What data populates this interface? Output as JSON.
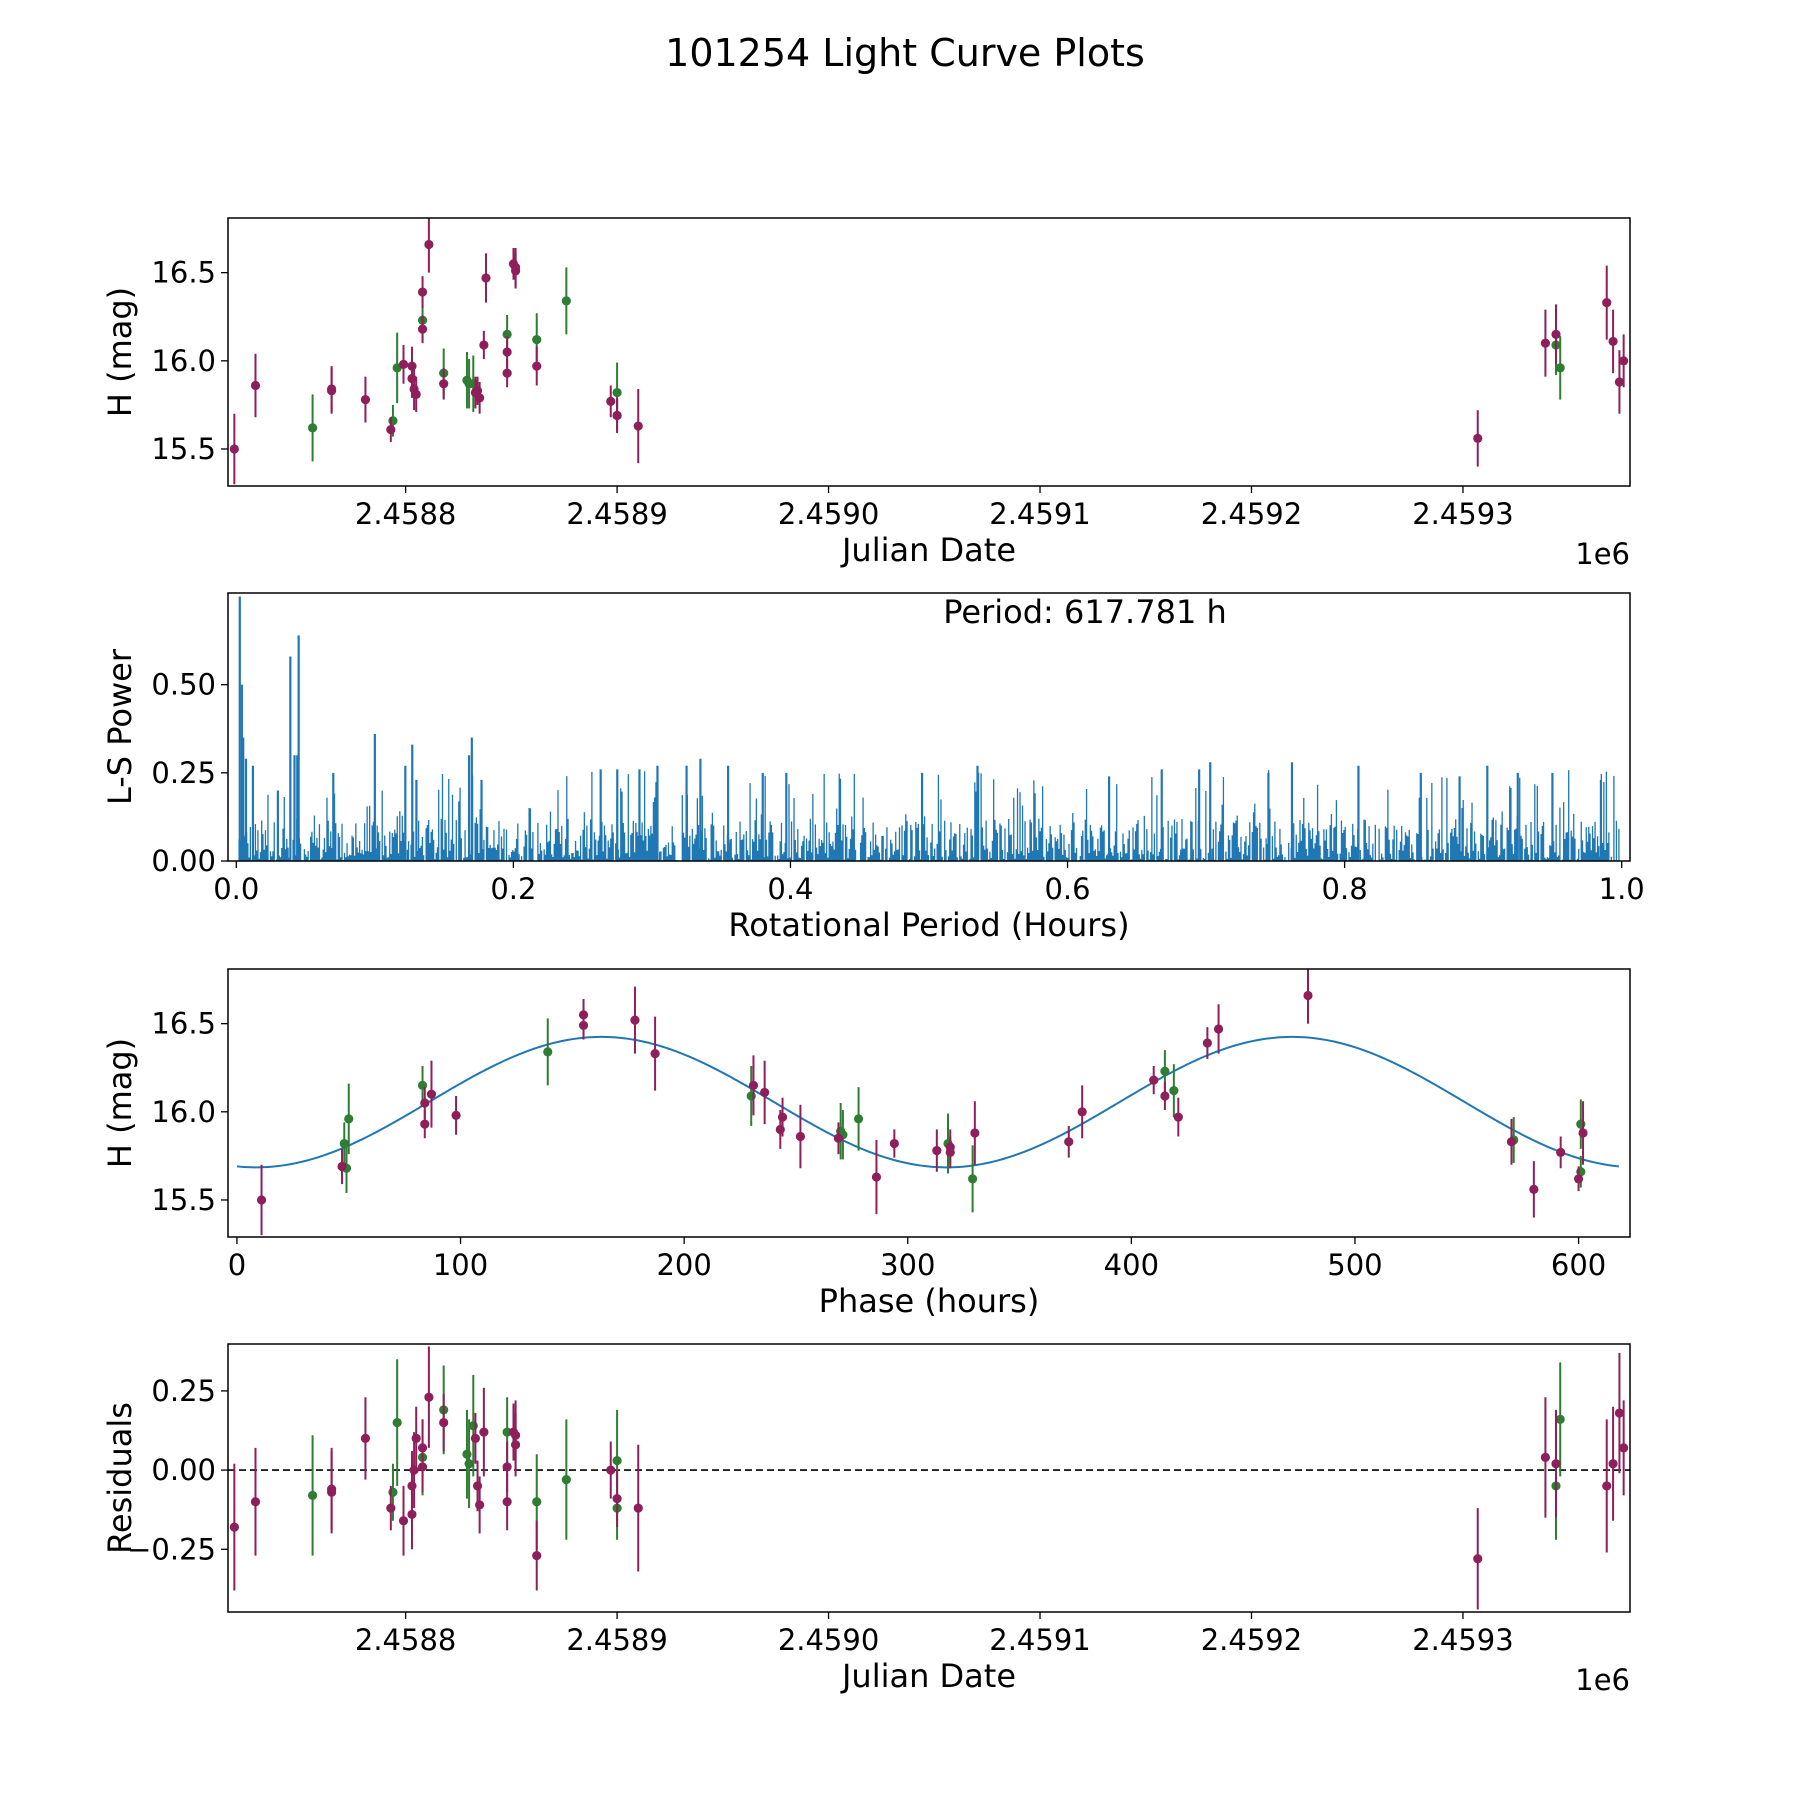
{
  "figure_title": "101254 Light Curve Plots",
  "colors": {
    "series_a": "#2e7d32",
    "series_b": "#8e1f5a",
    "model": "#1f77b4",
    "ls_power": "#1f77b4"
  },
  "chart_data": [
    {
      "id": "lightcurve",
      "type": "scatter",
      "xlabel": "Julian Date",
      "ylabel": "H (mag)",
      "x_offset_label": "1e6",
      "xlim": [
        2.458716,
        2.459379
      ],
      "ylim": [
        15.29,
        16.81
      ],
      "xticks": [
        2.4588,
        2.4589,
        2.459,
        2.4591,
        2.4592,
        2.4593
      ],
      "xtick_labels": [
        "2.4588",
        "2.4589",
        "2.4590",
        "2.4591",
        "2.4592",
        "2.4593"
      ],
      "yticks": [
        15.5,
        16.0,
        16.5
      ],
      "ytick_labels": [
        "15.5",
        "16.0",
        "16.5"
      ],
      "series": [
        {
          "name": "green",
          "color": "#2e7d32",
          "points": [
            [
              2.458756,
              15.62,
              0.19
            ],
            [
              2.458794,
              15.66,
              0.09
            ],
            [
              2.458796,
              15.96,
              0.2
            ],
            [
              2.458808,
              16.23,
              0.12
            ],
            [
              2.458818,
              15.93,
              0.14
            ],
            [
              2.458829,
              15.89,
              0.16
            ],
            [
              2.45883,
              15.87,
              0.14
            ],
            [
              2.458832,
              15.87,
              0.16
            ],
            [
              2.458848,
              16.15,
              0.11
            ],
            [
              2.458862,
              16.12,
              0.15
            ],
            [
              2.458876,
              16.34,
              0.19
            ],
            [
              2.4589,
              15.82,
              0.17
            ],
            [
              2.459344,
              16.09,
              0.17
            ],
            [
              2.459346,
              15.96,
              0.18
            ]
          ]
        },
        {
          "name": "maroon",
          "color": "#8e1f5a",
          "points": [
            [
              2.458719,
              15.5,
              0.2
            ],
            [
              2.458729,
              15.86,
              0.18
            ],
            [
              2.458765,
              15.84,
              0.13
            ],
            [
              2.458765,
              15.83,
              0.13
            ],
            [
              2.458781,
              15.78,
              0.13
            ],
            [
              2.458793,
              15.61,
              0.07
            ],
            [
              2.458799,
              15.98,
              0.11
            ],
            [
              2.458803,
              15.97,
              0.11
            ],
            [
              2.458803,
              15.9,
              0.11
            ],
            [
              2.458804,
              15.84,
              0.12
            ],
            [
              2.458805,
              15.81,
              0.1
            ],
            [
              2.458808,
              16.18,
              0.08
            ],
            [
              2.458808,
              16.39,
              0.09
            ],
            [
              2.458811,
              16.66,
              0.16
            ],
            [
              2.458818,
              15.87,
              0.09
            ],
            [
              2.458833,
              15.82,
              0.09
            ],
            [
              2.458834,
              15.83,
              0.08
            ],
            [
              2.458835,
              15.79,
              0.09
            ],
            [
              2.458837,
              16.09,
              0.08
            ],
            [
              2.458838,
              16.47,
              0.14
            ],
            [
              2.458848,
              15.93,
              0.08
            ],
            [
              2.458848,
              16.05,
              0.09
            ],
            [
              2.458851,
              16.55,
              0.09
            ],
            [
              2.458852,
              16.51,
              0.1
            ],
            [
              2.458852,
              16.53,
              0.11
            ],
            [
              2.458862,
              15.97,
              0.11
            ],
            [
              2.458897,
              15.77,
              0.09
            ],
            [
              2.4589,
              15.69,
              0.1
            ],
            [
              2.4589,
              15.69,
              0.09
            ],
            [
              2.45891,
              15.63,
              0.21
            ],
            [
              2.459307,
              15.56,
              0.16
            ],
            [
              2.459339,
              16.1,
              0.19
            ],
            [
              2.459344,
              16.15,
              0.17
            ],
            [
              2.459368,
              16.33,
              0.21
            ],
            [
              2.459371,
              16.11,
              0.18
            ],
            [
              2.459374,
              15.88,
              0.18
            ],
            [
              2.459376,
              16.0,
              0.15
            ]
          ]
        }
      ]
    },
    {
      "id": "periodogram",
      "type": "line",
      "xlabel": "Rotational Period (Hours)",
      "ylabel": "L-S Power",
      "annotation": "Period: 617.781 h",
      "xlim": [
        -0.006,
        1.006
      ],
      "ylim": [
        0,
        0.76
      ],
      "xticks": [
        0.0,
        0.2,
        0.4,
        0.6,
        0.8,
        1.0
      ],
      "xtick_labels": [
        "0.0",
        "0.2",
        "0.4",
        "0.6",
        "0.8",
        "1.0"
      ],
      "yticks": [
        0.0,
        0.25,
        0.5
      ],
      "ytick_labels": [
        "0.00",
        "0.25",
        "0.50"
      ],
      "x_range": [
        0.002,
        0.998
      ],
      "n_samples": 1100,
      "typical_max_power": 0.12,
      "typical_spike_power": 0.26,
      "peaks": [
        [
          0.0025,
          0.75
        ],
        [
          0.004,
          0.5
        ],
        [
          0.005,
          0.35
        ],
        [
          0.007,
          0.29
        ],
        [
          0.012,
          0.27
        ],
        [
          0.03,
          0.2
        ],
        [
          0.039,
          0.58
        ],
        [
          0.042,
          0.3
        ],
        [
          0.044,
          0.3
        ],
        [
          0.045,
          0.64
        ],
        [
          0.07,
          0.25
        ],
        [
          0.1,
          0.36
        ],
        [
          0.122,
          0.27
        ],
        [
          0.127,
          0.33
        ],
        [
          0.13,
          0.23
        ],
        [
          0.168,
          0.3
        ],
        [
          0.17,
          0.35
        ],
        [
          0.177,
          0.23
        ],
        [
          0.263,
          0.26
        ],
        [
          0.275,
          0.26
        ],
        [
          0.291,
          0.26
        ],
        [
          0.304,
          0.27
        ],
        [
          0.325,
          0.27
        ],
        [
          0.335,
          0.29
        ],
        [
          0.355,
          0.27
        ],
        [
          0.38,
          0.25
        ],
        [
          0.397,
          0.25
        ],
        [
          0.495,
          0.25
        ],
        [
          0.535,
          0.27
        ],
        [
          0.63,
          0.24
        ],
        [
          0.668,
          0.26
        ],
        [
          0.695,
          0.26
        ],
        [
          0.703,
          0.28
        ],
        [
          0.745,
          0.25
        ],
        [
          0.762,
          0.28
        ],
        [
          0.81,
          0.27
        ],
        [
          0.855,
          0.25
        ],
        [
          0.883,
          0.24
        ],
        [
          0.903,
          0.27
        ],
        [
          0.925,
          0.25
        ],
        [
          0.95,
          0.25
        ],
        [
          0.985,
          0.23
        ]
      ]
    },
    {
      "id": "folded",
      "type": "scatter",
      "xlabel": "Phase (hours)",
      "ylabel": "H (mag)",
      "xlim": [
        -4,
        623
      ],
      "ylim": [
        15.29,
        16.81
      ],
      "xticks": [
        0,
        100,
        200,
        300,
        400,
        500,
        600
      ],
      "xtick_labels": [
        "0",
        "100",
        "200",
        "300",
        "400",
        "500",
        "600"
      ],
      "yticks": [
        15.5,
        16.0,
        16.5
      ],
      "ytick_labels": [
        "15.5",
        "16.0",
        "16.5"
      ],
      "model": {
        "type": "sinusoid",
        "mean": 16.055,
        "amplitude": 0.37,
        "period_h": 308.9,
        "peak_phase_h": 163,
        "x_range": [
          0,
          618
        ]
      },
      "series": [
        {
          "name": "green",
          "color": "#2e7d32",
          "points": [
            [
              48,
              15.82,
              0.12
            ],
            [
              49,
              15.68,
              0.14
            ],
            [
              50,
              15.96,
              0.2
            ],
            [
              83,
              16.15,
              0.11
            ],
            [
              139,
              16.34,
              0.19
            ],
            [
              230,
              16.09,
              0.17
            ],
            [
              270,
              15.89,
              0.16
            ],
            [
              271,
              15.87,
              0.14
            ],
            [
              278,
              15.96,
              0.18
            ],
            [
              318,
              15.82,
              0.17
            ],
            [
              329,
              15.62,
              0.19
            ],
            [
              415,
              16.23,
              0.12
            ],
            [
              419,
              16.12,
              0.15
            ],
            [
              571,
              15.84,
              0.13
            ],
            [
              601,
              15.93,
              0.14
            ],
            [
              601,
              15.66,
              0.09
            ]
          ]
        },
        {
          "name": "maroon",
          "color": "#8e1f5a",
          "points": [
            [
              11,
              15.5,
              0.2
            ],
            [
              47,
              15.69,
              0.1
            ],
            [
              84,
              16.05,
              0.09
            ],
            [
              84,
              15.93,
              0.08
            ],
            [
              87,
              16.1,
              0.19
            ],
            [
              98,
              15.98,
              0.11
            ],
            [
              155,
              16.55,
              0.09
            ],
            [
              155,
              16.49,
              0.08
            ],
            [
              178,
              16.52,
              0.19
            ],
            [
              187,
              16.33,
              0.21
            ],
            [
              231,
              16.15,
              0.17
            ],
            [
              236,
              16.11,
              0.18
            ],
            [
              243,
              15.9,
              0.11
            ],
            [
              244,
              15.97,
              0.11
            ],
            [
              252,
              15.86,
              0.18
            ],
            [
              269,
              15.85,
              0.09
            ],
            [
              286,
              15.63,
              0.21
            ],
            [
              294,
              15.82,
              0.08
            ],
            [
              313,
              15.78,
              0.12
            ],
            [
              319,
              15.8,
              0.1
            ],
            [
              319,
              15.77,
              0.09
            ],
            [
              330,
              15.88,
              0.18
            ],
            [
              372,
              15.83,
              0.09
            ],
            [
              378,
              16.0,
              0.15
            ],
            [
              410,
              16.18,
              0.08
            ],
            [
              415,
              16.09,
              0.08
            ],
            [
              421,
              15.97,
              0.11
            ],
            [
              434,
              16.39,
              0.09
            ],
            [
              439,
              16.47,
              0.14
            ],
            [
              479,
              16.66,
              0.16
            ],
            [
              570,
              15.83,
              0.13
            ],
            [
              580,
              15.56,
              0.16
            ],
            [
              592,
              15.77,
              0.09
            ],
            [
              600,
              15.62,
              0.07
            ],
            [
              602,
              15.88,
              0.18
            ]
          ]
        }
      ]
    },
    {
      "id": "residuals",
      "type": "scatter",
      "xlabel": "Julian Date",
      "ylabel": "Residuals",
      "x_offset_label": "1e6",
      "xlim": [
        2.458716,
        2.459379
      ],
      "ylim": [
        -0.448,
        0.398
      ],
      "xticks": [
        2.4588,
        2.4589,
        2.459,
        2.4591,
        2.4592,
        2.4593
      ],
      "xtick_labels": [
        "2.4588",
        "2.4589",
        "2.4590",
        "2.4591",
        "2.4592",
        "2.4593"
      ],
      "yticks": [
        -0.25,
        0.0,
        0.25
      ],
      "ytick_labels": [
        "−0.25",
        "0.00",
        "0.25"
      ],
      "reference_line": 0,
      "series": [
        {
          "name": "green",
          "color": "#2e7d32",
          "points": [
            [
              2.458756,
              -0.08,
              0.19
            ],
            [
              2.458794,
              -0.07,
              0.09
            ],
            [
              2.458796,
              0.15,
              0.2
            ],
            [
              2.458808,
              0.04,
              0.12
            ],
            [
              2.458818,
              0.19,
              0.14
            ],
            [
              2.458829,
              0.05,
              0.14
            ],
            [
              2.45883,
              0.02,
              0.14
            ],
            [
              2.458832,
              0.14,
              0.16
            ],
            [
              2.458848,
              0.12,
              0.11
            ],
            [
              2.458862,
              -0.1,
              0.15
            ],
            [
              2.458876,
              -0.03,
              0.19
            ],
            [
              2.4589,
              0.03,
              0.16
            ],
            [
              2.4589,
              -0.12,
              0.1
            ],
            [
              2.459344,
              -0.05,
              0.17
            ],
            [
              2.459346,
              0.16,
              0.18
            ]
          ]
        },
        {
          "name": "maroon",
          "color": "#8e1f5a",
          "points": [
            [
              2.458719,
              -0.18,
              0.2
            ],
            [
              2.458729,
              -0.1,
              0.17
            ],
            [
              2.458765,
              -0.07,
              0.13
            ],
            [
              2.458765,
              -0.06,
              0.13
            ],
            [
              2.458781,
              0.1,
              0.13
            ],
            [
              2.458793,
              -0.12,
              0.07
            ],
            [
              2.458799,
              -0.16,
              0.11
            ],
            [
              2.458803,
              -0.14,
              0.11
            ],
            [
              2.458803,
              -0.05,
              0.11
            ],
            [
              2.458804,
              0.0,
              0.12
            ],
            [
              2.458805,
              0.1,
              0.1
            ],
            [
              2.458808,
              0.01,
              0.08
            ],
            [
              2.458808,
              0.07,
              0.09
            ],
            [
              2.458811,
              0.23,
              0.16
            ],
            [
              2.458818,
              0.15,
              0.09
            ],
            [
              2.458833,
              0.1,
              0.08
            ],
            [
              2.458834,
              -0.05,
              0.08
            ],
            [
              2.458835,
              -0.11,
              0.09
            ],
            [
              2.458837,
              0.12,
              0.14
            ],
            [
              2.458848,
              0.01,
              0.08
            ],
            [
              2.458848,
              -0.1,
              0.09
            ],
            [
              2.458851,
              0.12,
              0.09
            ],
            [
              2.458852,
              0.08,
              0.1
            ],
            [
              2.458852,
              0.11,
              0.11
            ],
            [
              2.458862,
              -0.27,
              0.11
            ],
            [
              2.458897,
              0.0,
              0.09
            ],
            [
              2.4589,
              -0.09,
              0.09
            ],
            [
              2.45891,
              -0.12,
              0.2
            ],
            [
              2.459307,
              -0.28,
              0.16
            ],
            [
              2.459339,
              0.04,
              0.19
            ],
            [
              2.459344,
              0.02,
              0.17
            ],
            [
              2.459368,
              -0.05,
              0.21
            ],
            [
              2.459371,
              0.02,
              0.18
            ],
            [
              2.459374,
              0.18,
              0.19
            ],
            [
              2.459376,
              0.07,
              0.15
            ]
          ]
        }
      ]
    }
  ]
}
